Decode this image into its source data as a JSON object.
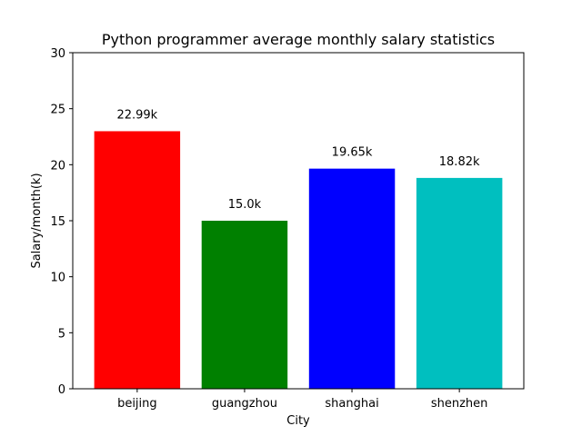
{
  "chart_data": {
    "type": "bar",
    "title": "Python programmer average monthly salary statistics",
    "xlabel": "City",
    "ylabel": "Salary/month(k)",
    "categories": [
      "beijing",
      "guangzhou",
      "shanghai",
      "shenzhen"
    ],
    "values": [
      22.99,
      15.0,
      19.65,
      18.82
    ],
    "data_labels": [
      "22.99k",
      "15.0k",
      "19.65k",
      "18.82k"
    ],
    "colors": [
      "#ff0000",
      "#008000",
      "#0000ff",
      "#00bfbf"
    ],
    "ylim": [
      0,
      30
    ],
    "yticks": [
      0,
      5,
      10,
      15,
      20,
      25,
      30
    ],
    "ytick_labels": [
      "0",
      "5",
      "10",
      "15",
      "20",
      "25",
      "30"
    ],
    "grid": false,
    "legend": "none"
  }
}
